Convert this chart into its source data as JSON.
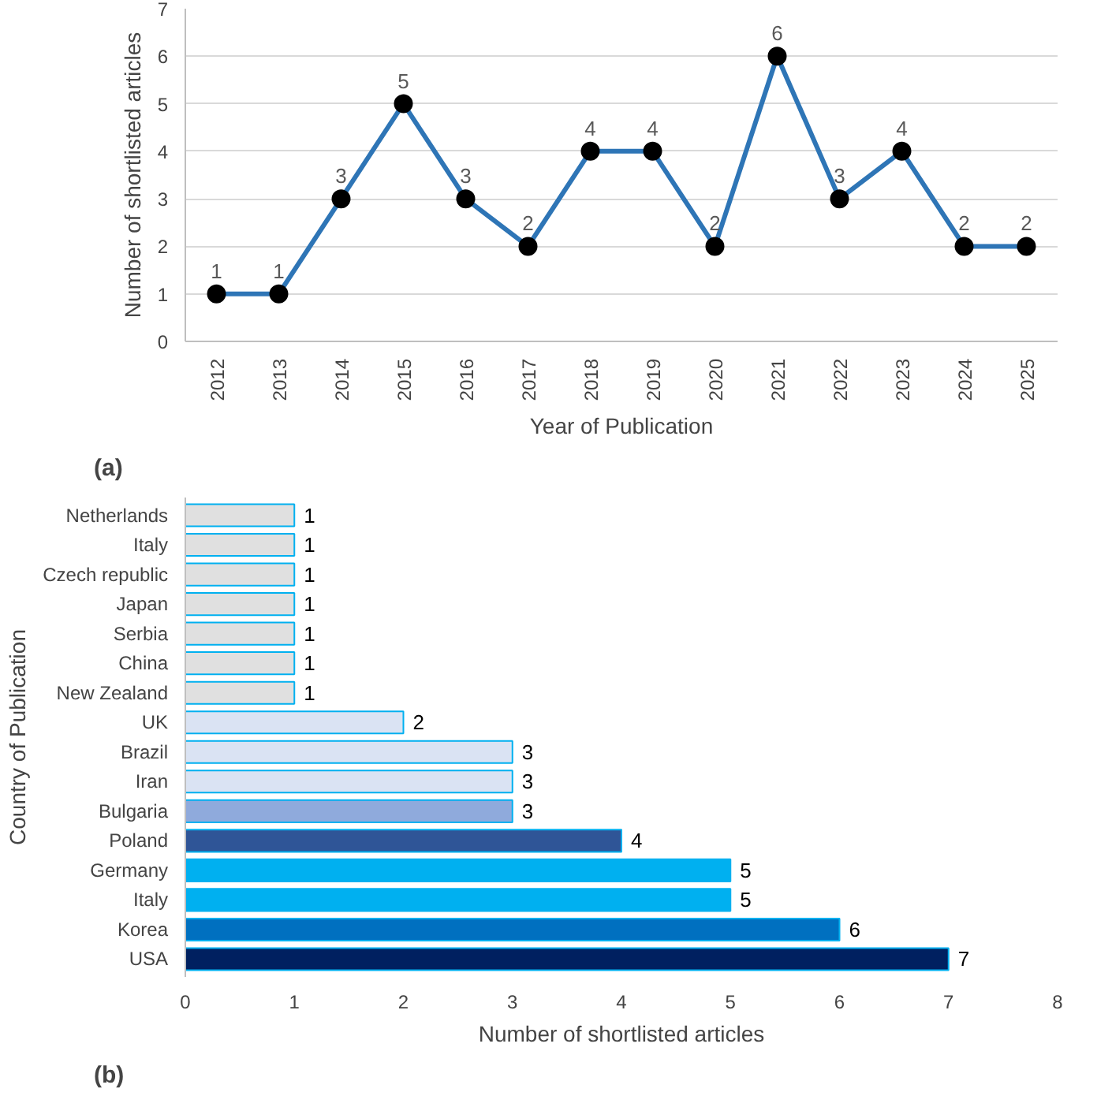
{
  "chart_data": [
    {
      "type": "line",
      "xlabel": "Year of Publication",
      "ylabel": "Number of shortlisted articles",
      "categories": [
        "2012",
        "2013",
        "2014",
        "2015",
        "2016",
        "2017",
        "2018",
        "2019",
        "2020",
        "2021",
        "2022",
        "2023",
        "2024",
        "2025"
      ],
      "series": [
        {
          "color": "#2e75b6",
          "values": [
            1,
            1,
            3,
            5,
            3,
            2,
            4,
            4,
            2,
            6,
            3,
            4,
            2,
            2
          ]
        }
      ],
      "ylim": [
        0,
        7
      ],
      "yticks": [
        0,
        1,
        2,
        3,
        4,
        5,
        6,
        7
      ],
      "grid": "y",
      "marker": "circle",
      "data_labels": true,
      "annotations": [
        "(a)"
      ]
    },
    {
      "type": "bar",
      "orientation": "horizontal",
      "xlabel": "Number of shortlisted articles",
      "ylabel": "Country of Publication",
      "categories": [
        "Netherlands",
        "Italy",
        "Czech republic",
        "Japan",
        "Serbia",
        "China",
        "New Zealand",
        "UK",
        "Brazil",
        "Iran",
        "Bulgaria",
        "Poland",
        "Germany",
        "Italy",
        "Korea",
        "USA"
      ],
      "values": [
        1,
        1,
        1,
        1,
        1,
        1,
        1,
        2,
        3,
        3,
        3,
        4,
        5,
        5,
        6,
        7
      ],
      "colors": [
        "#e0e0e0",
        "#e0e0e0",
        "#e0e0e0",
        "#e0e0e0",
        "#e0e0e0",
        "#e0e0e0",
        "#e0e0e0",
        "#dae3f3",
        "#dae3f3",
        "#dae3f3",
        "#8faadc",
        "#2f5597",
        "#00b0f0",
        "#00b0f0",
        "#0070c0",
        "#002060"
      ],
      "xlim": [
        0,
        8
      ],
      "xticks": [
        0,
        1,
        2,
        3,
        4,
        5,
        6,
        7,
        8
      ],
      "grid": false,
      "data_labels": true,
      "annotations": [
        "(b)"
      ]
    }
  ]
}
